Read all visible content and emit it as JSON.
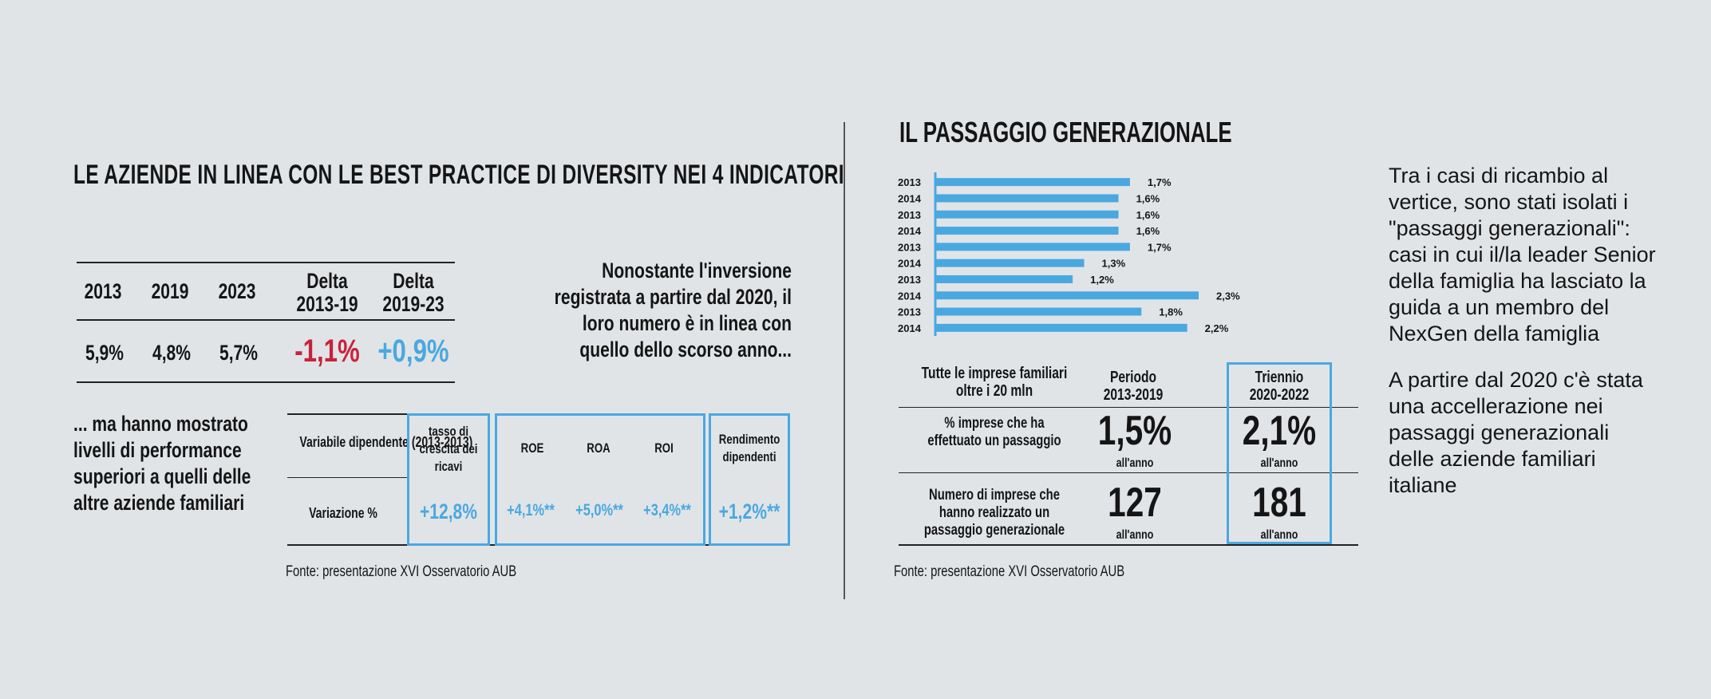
{
  "left": {
    "title": "LE AZIENDE IN LINEA CON LE BEST PRACTICE DI DIVERSITY NEI 4 INDICATORI",
    "table": {
      "headers": [
        "2013",
        "2019",
        "2023",
        "Delta\n2013-19",
        "Delta\n2019-23"
      ],
      "values": [
        "5,9%",
        "4,8%",
        "5,7%",
        "-1,1%",
        "+0,9%"
      ]
    },
    "summary": "Nonostante l'inversione registrata a partire dal 2020, il loro numero è in linea con quello  dello scorso anno...",
    "performance": "... ma hanno mostrato livelli di performance superiori a quelli delle altre aziende familiari",
    "perf_table": {
      "row1_label": "Variabile dipendente (2013-2013)",
      "row2_label": "Variazione %",
      "cols": [
        {
          "label": "tasso di crescita dei ricavi",
          "value": "+12,8%"
        },
        {
          "label": "ROE",
          "value": "+4,1%**"
        },
        {
          "label": "ROA",
          "value": "+5,0%**"
        },
        {
          "label": "ROI",
          "value": "+3,4%**"
        },
        {
          "label": "Rendimento dipendenti",
          "value": "+1,2%**"
        }
      ]
    },
    "source": "Fonte: presentazione XVI Osservatorio AUB"
  },
  "right": {
    "title": "IL PASSAGGIO GENERAZIONALE",
    "description": [
      "Tra i casi di ricambio al vertice, sono stati isolati i \"passaggi generazionali\": casi in cui il/la leader Senior della famiglia ha lasciato la guida a un membro del NexGen della famiglia",
      "A partire dal 2020 c'è stata una accellerazione nei passaggi generazionali delle aziende familiari italiane"
    ],
    "table": {
      "corner": "Tutte le imprese familiari oltre i 20 mln",
      "col1": "Periodo 2013-2019",
      "col2": "Triennio 2020-2022",
      "row1_label": "% imprese che ha effettuato un passaggio",
      "row1_v1": "1,5%",
      "row1_v2": "2,1%",
      "row2_label": "Numero di imprese che hanno realizzato un passaggio generazionale",
      "row2_v1": "127",
      "row2_v2": "181",
      "unit": "all'anno"
    },
    "source": "Fonte: presentazione XVI Osservatorio AUB"
  },
  "colors": {
    "accent": "#4aa8e0",
    "negative": "#c8223b",
    "background": "#e1e4e7",
    "text": "#151515"
  },
  "chart_data": {
    "type": "bar",
    "orientation": "horizontal",
    "categories": [
      "2013",
      "2014",
      "2013",
      "2014",
      "2013",
      "2014",
      "2013",
      "2014",
      "2013",
      "2014"
    ],
    "values": [
      1.7,
      1.6,
      1.6,
      1.6,
      1.7,
      1.3,
      1.2,
      2.3,
      1.8,
      2.2
    ],
    "labels": [
      "1,7%",
      "1,6%",
      "1,6%",
      "1,6%",
      "1,7%",
      "1,3%",
      "1,2%",
      "2,3%",
      "1,8%",
      "2,2%"
    ],
    "color": "#4aa8e0",
    "xlim": [
      0,
      2.3
    ]
  }
}
